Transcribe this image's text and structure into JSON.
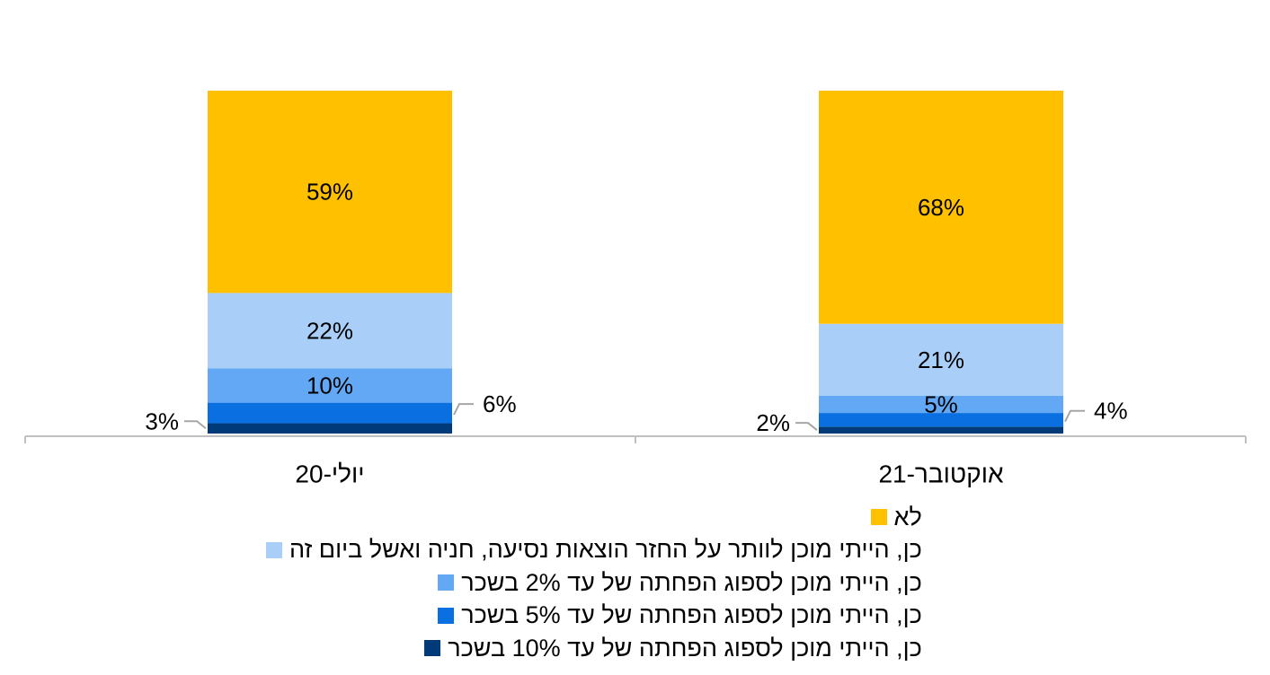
{
  "chart_data": {
    "type": "bar",
    "stacked": true,
    "categories": [
      "יולי-20",
      "אוקטובר-21"
    ],
    "ylim": [
      0,
      100
    ],
    "grid": false,
    "legend_position": "bottom",
    "series": [
      {
        "name": "כן, הייתי מוכן לספוג הפחתה של עד 10% בשכר",
        "color": "#003a78",
        "values": [
          3,
          2
        ],
        "labels": [
          "3%",
          "2%"
        ]
      },
      {
        "name": "כן, הייתי מוכן לספוג הפחתה של עד 5% בשכר",
        "color": "#0a6fe0",
        "values": [
          6,
          4
        ],
        "labels": [
          "6%",
          "4%"
        ]
      },
      {
        "name": "כן, הייתי מוכן לספוג הפחתה של עד 2% בשכר",
        "color": "#62a8f5",
        "values": [
          10,
          5
        ],
        "labels": [
          "10%",
          "5%"
        ]
      },
      {
        "name": "כן, הייתי מוכן לוותר על החזר הוצאות נסיעה, חניה ואשל ביום זה",
        "color": "#a9cff8",
        "values": [
          22,
          21
        ],
        "labels": [
          "22%",
          "21%"
        ]
      },
      {
        "name": "לא",
        "color": "#ffc000",
        "values": [
          59,
          68
        ],
        "labels": [
          "59%",
          "68%"
        ]
      }
    ]
  }
}
